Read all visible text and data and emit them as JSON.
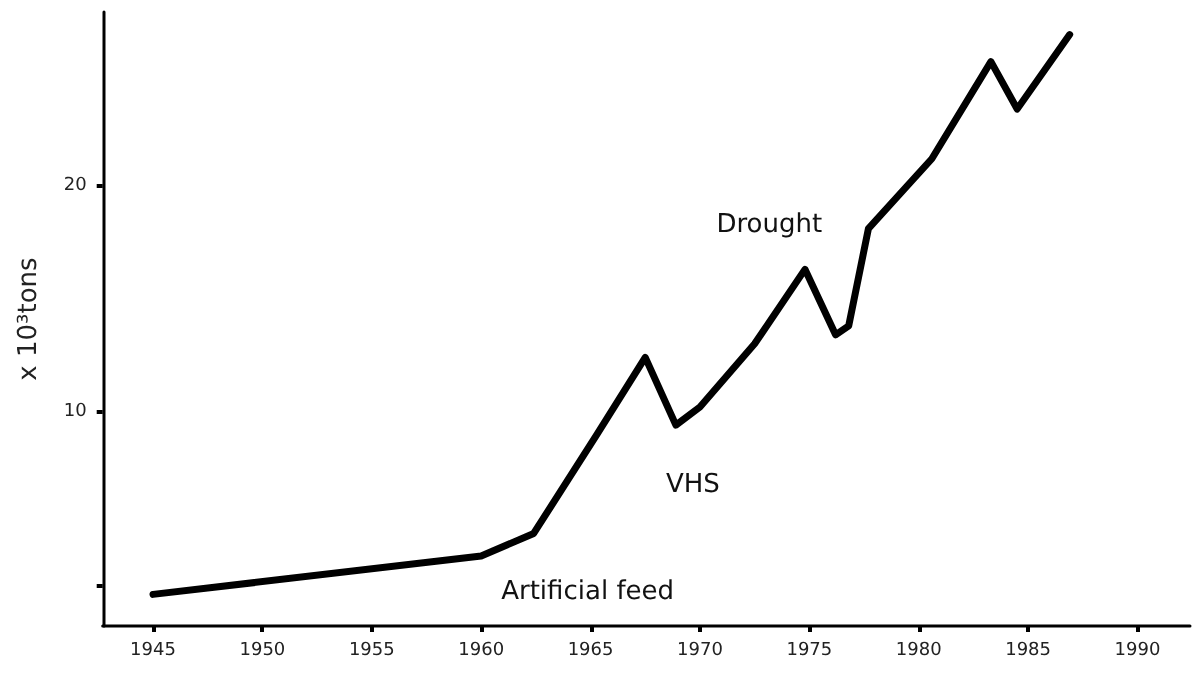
{
  "chart_data": {
    "type": "line",
    "ylabel": "x 10³tons",
    "x": [
      1945,
      1960,
      1962.4,
      1965.3,
      1967.5,
      1968.9,
      1970,
      1972.5,
      1974.8,
      1976.2,
      1976.8,
      1977.7,
      1980.6,
      1983.3,
      1984.5,
      1986.9
    ],
    "series": [
      {
        "color": "#000000",
        "values": [
          1.9,
          3.6,
          4.6,
          9.0,
          12.4,
          9.4,
          10.2,
          13.0,
          16.3,
          13.4,
          13.8,
          18.1,
          21.2,
          25.5,
          23.4,
          26.7
        ]
      }
    ],
    "xlim": [
      1942.7,
      1992.4
    ],
    "xticks": [
      1945,
      1950,
      1955,
      1960,
      1965,
      1970,
      1975,
      1980,
      1985,
      1990
    ],
    "ylim": [
      0.5,
      27.7
    ],
    "yticks": [
      {
        "value": 2.3,
        "label": null
      },
      10,
      20
    ],
    "annotations": [
      {
        "text": "Artificial feed",
        "x": 1960,
        "y": 3.6
      },
      {
        "text": "VHS",
        "x": 1968.9,
        "y": 9.4
      },
      {
        "text": "Drought",
        "x": 1977.7,
        "y": 18.1
      }
    ],
    "grid": false,
    "marker": "none",
    "line_style": "solid"
  }
}
